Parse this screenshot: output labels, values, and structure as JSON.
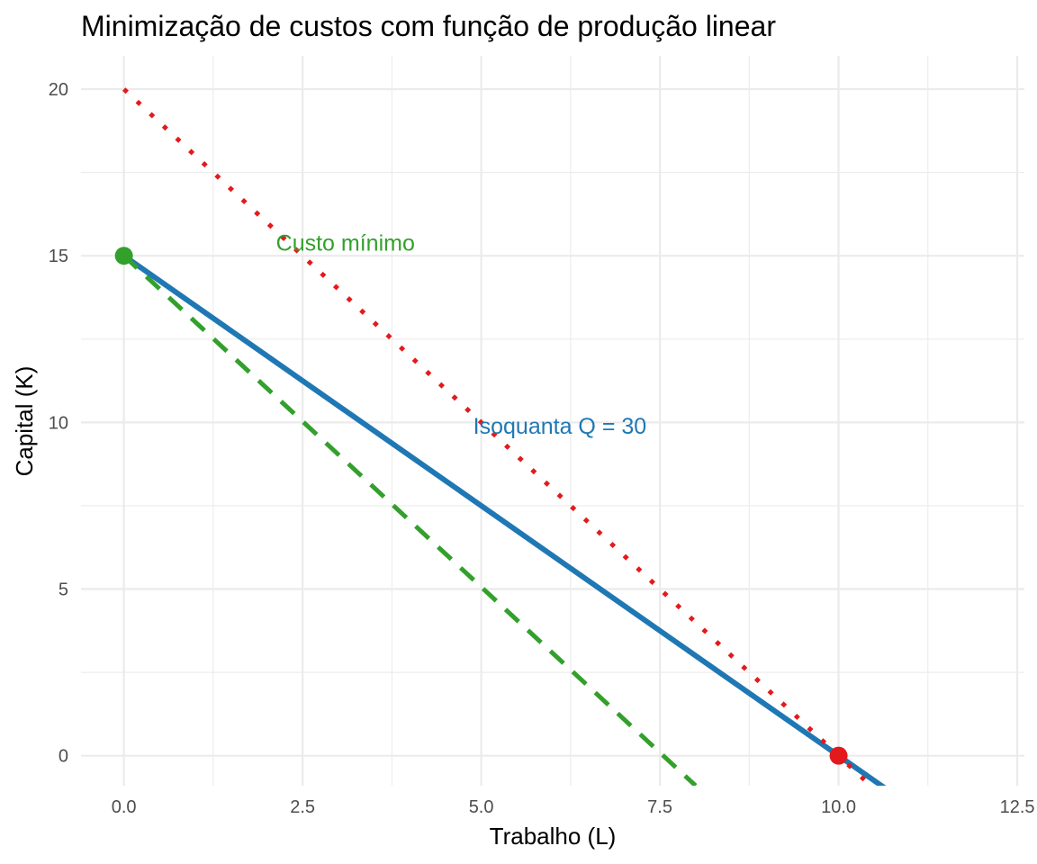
{
  "chart_data": {
    "type": "line",
    "title": "Minimização de custos com função de produção linear",
    "xlabel": "Trabalho (L)",
    "ylabel": "Capital (K)",
    "xlim": [
      -0.6,
      12.6
    ],
    "ylim": [
      -0.9,
      21.0
    ],
    "x_ticks": [
      0.0,
      2.5,
      5.0,
      7.5,
      10.0,
      12.5
    ],
    "x_tick_labels": [
      "0.0",
      "2.5",
      "5.0",
      "7.5",
      "10.0",
      "12.5"
    ],
    "y_ticks": [
      0,
      5,
      10,
      15,
      20
    ],
    "y_tick_labels": [
      "0",
      "5",
      "10",
      "15",
      "20"
    ],
    "grid": true,
    "legend": "none",
    "colors": {
      "blue": "#1f78b4",
      "green": "#33a02c",
      "red": "#e31a1c",
      "grid": "#ebebeb"
    },
    "series": [
      {
        "style": "solid",
        "color": "#1f78b4",
        "x": [
          0,
          10.75
        ],
        "y": [
          15,
          -1.125
        ]
      },
      {
        "style": "dashed",
        "color": "#33a02c",
        "x": [
          0,
          8.0
        ],
        "y": [
          15,
          -0.9
        ]
      },
      {
        "style": "dotted",
        "color": "#e31a1c",
        "x": [
          0,
          10.6
        ],
        "y": [
          20,
          -1.2
        ]
      }
    ],
    "points": [
      {
        "x": 0,
        "y": 15,
        "color": "#33a02c"
      },
      {
        "x": 10,
        "y": 0,
        "color": "#e31a1c"
      }
    ],
    "annotations": [
      {
        "text": "Custo mínimo",
        "x": 3.1,
        "y": 15.4,
        "color": "#33a02c"
      },
      {
        "text": "Isoquanta Q = 30",
        "x": 6.1,
        "y": 9.9,
        "color": "#1f78b4"
      }
    ]
  }
}
